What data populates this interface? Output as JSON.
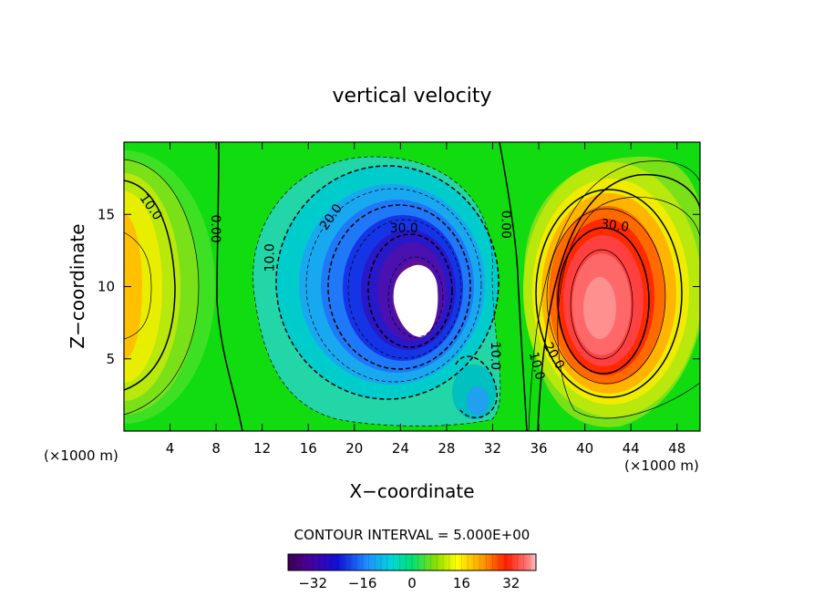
{
  "chart_data": {
    "type": "contour",
    "title": "vertical velocity",
    "xlabel": "X−coordinate",
    "ylabel": "Z−coordinate",
    "x_unit_note": "(×1000 m)",
    "y_unit_note": "(×1000 m)",
    "xlim": [
      0,
      50
    ],
    "ylim": [
      0,
      20
    ],
    "xticks": [
      4,
      8,
      12,
      16,
      20,
      24,
      28,
      32,
      36,
      40,
      44,
      48
    ],
    "yticks": [
      5,
      10,
      15
    ],
    "contour_interval_text": "CONTOUR INTERVAL = 5.000E+00",
    "contour_interval": 5.0,
    "colorbar": {
      "range": [
        -40,
        40
      ],
      "ticks": [
        -32,
        -16,
        0,
        16,
        32
      ],
      "tick_labels": [
        "−32",
        "−16",
        "0",
        "16",
        "32"
      ]
    },
    "features": [
      {
        "kind": "updraft",
        "center": [
          0,
          10.5
        ],
        "peak": 20
      },
      {
        "kind": "downdraft",
        "center": [
          25.5,
          9.5
        ],
        "peak": -42
      },
      {
        "kind": "updraft",
        "center": [
          41,
          8.5
        ],
        "peak": 40
      }
    ],
    "contour_labels": [
      {
        "text": "10.0",
        "x": 2.3,
        "z": 15.5,
        "angle": 55
      },
      {
        "text": "0.00",
        "x": 7.9,
        "z": 14.0,
        "angle": 90
      },
      {
        "text": "10.0",
        "x": 12.7,
        "z": 12.0,
        "angle": -90
      },
      {
        "text": "20.0",
        "x": 18.0,
        "z": 14.8,
        "angle": -55
      },
      {
        "text": "30.0",
        "x": 24.3,
        "z": 14.0,
        "angle": 0
      },
      {
        "text": "0.00",
        "x": 33.1,
        "z": 14.3,
        "angle": 90
      },
      {
        "text": "10.0",
        "x": 32.2,
        "z": 5.2,
        "angle": 90
      },
      {
        "text": "20.0",
        "x": 37.3,
        "z": 5.2,
        "angle": 60
      },
      {
        "text": "10.0",
        "x": 35.8,
        "z": 4.5,
        "angle": 75
      },
      {
        "text": "30.0",
        "x": 42.6,
        "z": 14.2,
        "angle": 8
      }
    ]
  }
}
